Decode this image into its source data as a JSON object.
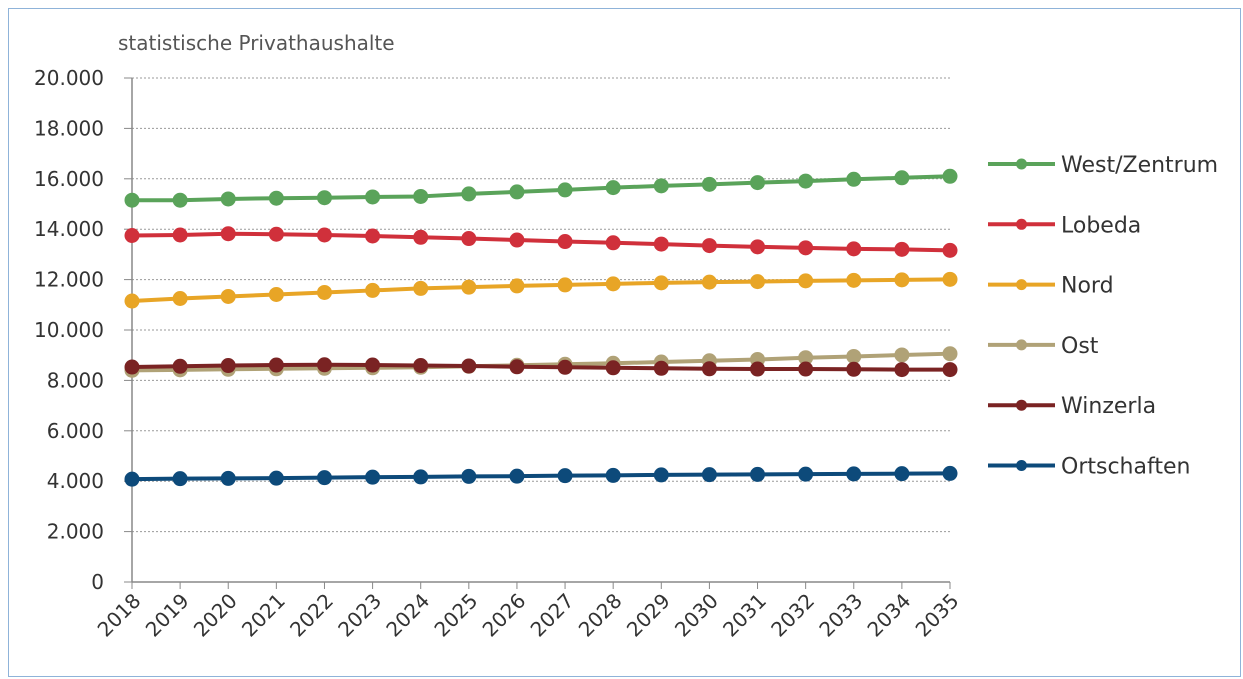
{
  "chart_data": {
    "type": "line",
    "ylabel": "statistische Privathaushalte",
    "xlabel": "",
    "title": "",
    "ylim": [
      0,
      20000
    ],
    "yticks": [
      "0",
      "2.000",
      "4.000",
      "6.000",
      "8.000",
      "10.000",
      "12.000",
      "14.000",
      "16.000",
      "18.000",
      "20.000"
    ],
    "ytick_values": [
      0,
      2000,
      4000,
      6000,
      8000,
      10000,
      12000,
      14000,
      16000,
      18000,
      20000
    ],
    "grid": "horizontal dashed",
    "legend_position": "right",
    "x": [
      "2018",
      "2019",
      "2020",
      "2021",
      "2022",
      "2023",
      "2024",
      "2025",
      "2026",
      "2027",
      "2028",
      "2029",
      "2030",
      "2031",
      "2032",
      "2033",
      "2034",
      "2035"
    ],
    "series": [
      {
        "name": "West/Zentrum",
        "color": "#5aa35a",
        "values": [
          15150,
          15150,
          15200,
          15230,
          15250,
          15280,
          15300,
          15400,
          15480,
          15560,
          15650,
          15720,
          15780,
          15850,
          15910,
          15980,
          16040,
          16100
        ]
      },
      {
        "name": "Lobeda",
        "color": "#d0303b",
        "values": [
          13750,
          13770,
          13820,
          13800,
          13770,
          13730,
          13680,
          13630,
          13570,
          13510,
          13460,
          13410,
          13350,
          13300,
          13260,
          13220,
          13200,
          13160
        ]
      },
      {
        "name": "Nord",
        "color": "#e8a526",
        "values": [
          11150,
          11250,
          11330,
          11410,
          11490,
          11570,
          11650,
          11700,
          11750,
          11790,
          11830,
          11870,
          11900,
          11920,
          11950,
          11970,
          11990,
          12010
        ]
      },
      {
        "name": "Ost",
        "color": "#b0a277",
        "values": [
          8400,
          8420,
          8440,
          8460,
          8480,
          8500,
          8520,
          8560,
          8600,
          8640,
          8680,
          8730,
          8780,
          8830,
          8900,
          8950,
          9010,
          9060
        ]
      },
      {
        "name": "Winzerla",
        "color": "#7a2323",
        "values": [
          8530,
          8560,
          8590,
          8610,
          8620,
          8610,
          8590,
          8570,
          8540,
          8520,
          8500,
          8480,
          8460,
          8450,
          8450,
          8440,
          8430,
          8430
        ]
      },
      {
        "name": "Ortschaften",
        "color": "#0d4a7a",
        "values": [
          4080,
          4100,
          4110,
          4120,
          4140,
          4160,
          4170,
          4190,
          4200,
          4220,
          4230,
          4250,
          4260,
          4270,
          4280,
          4290,
          4300,
          4310
        ]
      }
    ]
  }
}
